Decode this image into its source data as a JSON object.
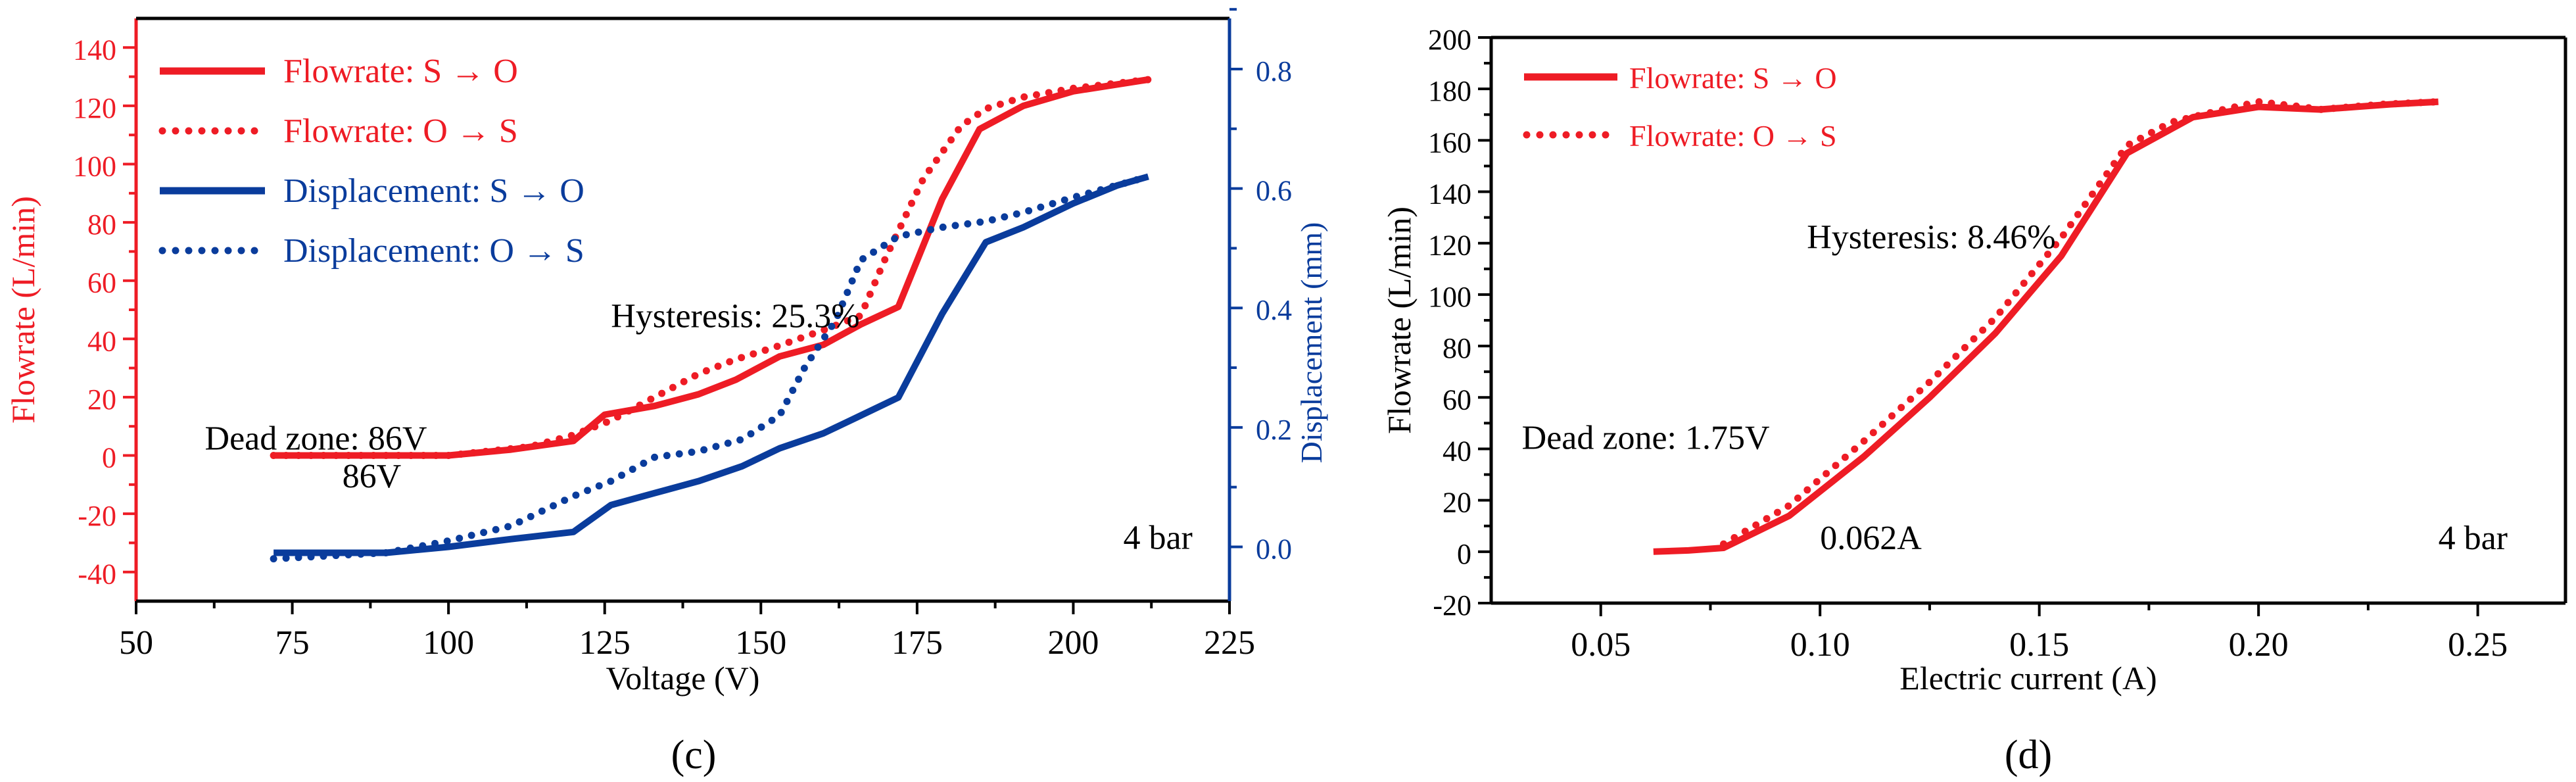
{
  "chart_data": [
    {
      "type": "line",
      "panel_label": "(c)",
      "xlabel": "Voltage (V)",
      "ylabel": "Flowrate (L/min)",
      "ylabel_right": "Displacement (mm)",
      "xlim": [
        50,
        225
      ],
      "ylim": [
        -50,
        150
      ],
      "ylim_right": [
        -0.0909,
        0.8848
      ],
      "xticks": [
        50,
        75,
        100,
        125,
        150,
        175,
        200,
        225
      ],
      "yticks": [
        -40,
        -20,
        0,
        20,
        40,
        60,
        80,
        100,
        120,
        140
      ],
      "yticks_right": [
        "0.0",
        "0.2",
        "0.4",
        "0.6",
        "0.8"
      ],
      "legend_position": "top-left",
      "colors": {
        "flow": "#ee1c25",
        "disp": "#0a3c9c",
        "text": "#000000"
      },
      "series": [
        {
          "name": "Flowrate: S → O",
          "axis": "left",
          "style": "solid",
          "color": "#ee1c25",
          "x": [
            72,
            100,
            110,
            120,
            125,
            133,
            140,
            146,
            153,
            160,
            166,
            172,
            179,
            185,
            192,
            200,
            212
          ],
          "y": [
            0,
            0,
            2,
            5,
            14,
            17,
            21,
            26,
            34,
            38,
            45,
            51,
            88,
            112,
            120,
            125,
            129
          ]
        },
        {
          "name": "Flowrate: O → S",
          "axis": "left",
          "style": "dotted",
          "color": "#ee1c25",
          "x": [
            72,
            100,
            113,
            120,
            126,
            133,
            140,
            146,
            152,
            160,
            166,
            170,
            176,
            182,
            186,
            192,
            200,
            212
          ],
          "y": [
            0,
            0,
            3,
            7,
            12,
            20,
            28,
            33,
            37,
            43,
            48,
            68,
            95,
            113,
            119,
            123,
            126,
            129
          ]
        },
        {
          "name": "Displacement: S → O",
          "axis": "right",
          "style": "solid",
          "color": "#0a3c9c",
          "x": [
            72,
            90,
            100,
            110,
            120,
            126,
            133,
            140,
            147,
            153,
            160,
            166,
            172,
            179,
            186,
            192,
            200,
            207,
            212
          ],
          "y": [
            -0.01,
            -0.01,
            0,
            0.013,
            0.025,
            0.07,
            0.09,
            0.11,
            0.135,
            0.165,
            0.19,
            0.22,
            0.25,
            0.39,
            0.51,
            0.535,
            0.575,
            0.605,
            0.62
          ]
        },
        {
          "name": "Displacement: O → S",
          "axis": "right",
          "style": "dotted",
          "color": "#0a3c9c",
          "x": [
            72,
            90,
            100,
            110,
            120,
            126,
            133,
            140,
            147,
            153,
            157,
            162,
            166,
            172,
            179,
            186,
            192,
            200,
            212
          ],
          "y": [
            -0.02,
            -0.01,
            0.01,
            0.035,
            0.085,
            0.11,
            0.15,
            0.16,
            0.18,
            0.22,
            0.3,
            0.38,
            0.48,
            0.52,
            0.535,
            0.545,
            0.56,
            0.585,
            0.62
          ]
        }
      ],
      "annotations": [
        {
          "text": "Hysteresis: 25.3%",
          "x": 126,
          "y": 44
        },
        {
          "text": "Dead zone: 86V",
          "x": 61,
          "y": 2
        },
        {
          "text": "86V",
          "x": 83,
          "y": -11
        },
        {
          "text": "4 bar",
          "x": 208,
          "y": -32
        }
      ]
    },
    {
      "type": "line",
      "panel_label": "(d)",
      "xlabel": "Electric current (A)",
      "ylabel": "Flowrate (L/min)",
      "xlim": [
        0.025,
        0.27
      ],
      "ylim": [
        -20,
        200
      ],
      "xticks": [
        "0.05",
        "0.10",
        "0.15",
        "0.20",
        "0.25"
      ],
      "yticks": [
        -20,
        0,
        20,
        40,
        60,
        80,
        100,
        120,
        140,
        160,
        180,
        200
      ],
      "legend_position": "top-left",
      "colors": {
        "flow": "#ee1c25",
        "text": "#000000"
      },
      "series": [
        {
          "name": "Flowrate: S → O",
          "style": "solid",
          "color": "#ee1c25",
          "x": [
            0.062,
            0.07,
            0.078,
            0.093,
            0.11,
            0.125,
            0.14,
            0.155,
            0.17,
            0.185,
            0.2,
            0.214,
            0.23,
            0.241
          ],
          "y": [
            0,
            0.5,
            1.5,
            14,
            37,
            60,
            85,
            115,
            155,
            169,
            173,
            172,
            174,
            175
          ]
        },
        {
          "name": "Flowrate: O → S",
          "style": "dotted",
          "color": "#ee1c25",
          "x": [
            0.078,
            0.093,
            0.11,
            0.125,
            0.14,
            0.155,
            0.17,
            0.18,
            0.192,
            0.2,
            0.21,
            0.214,
            0.228,
            0.241
          ],
          "y": [
            3,
            18,
            43,
            66,
            91,
            122,
            158,
            167,
            172,
            175,
            173,
            172,
            174,
            175
          ]
        }
      ],
      "annotations": [
        {
          "text": "Hysteresis: 8.46%",
          "x": 0.097,
          "y": 118
        },
        {
          "text": "Dead zone: 1.75V",
          "x": 0.032,
          "y": 40
        },
        {
          "text": "0.062A",
          "x": 0.1,
          "y": 1
        },
        {
          "text": "4 bar",
          "x": 0.241,
          "y": 1
        }
      ]
    }
  ]
}
